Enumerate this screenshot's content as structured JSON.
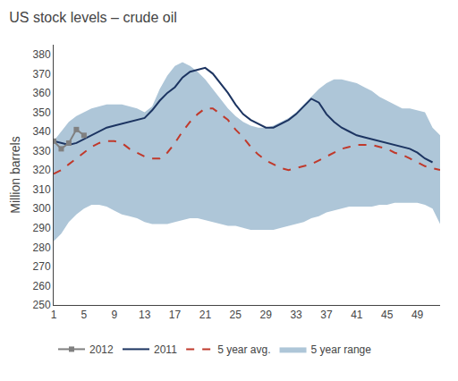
{
  "chart_data": {
    "type": "line",
    "title": "US stock levels – crude oil",
    "ylabel": "Million barrels",
    "x": [
      1,
      2,
      3,
      4,
      5,
      6,
      7,
      8,
      9,
      10,
      11,
      12,
      13,
      14,
      15,
      16,
      17,
      18,
      19,
      20,
      21,
      22,
      23,
      24,
      25,
      26,
      27,
      28,
      29,
      30,
      31,
      32,
      33,
      34,
      35,
      36,
      37,
      38,
      39,
      40,
      41,
      42,
      43,
      44,
      45,
      46,
      47,
      48,
      49,
      50,
      51,
      52
    ],
    "xlim": [
      1,
      52
    ],
    "xticks": [
      1,
      5,
      9,
      13,
      17,
      21,
      25,
      29,
      33,
      37,
      41,
      45,
      49
    ],
    "ylim": [
      250,
      385
    ],
    "yticks": [
      250,
      260,
      270,
      280,
      290,
      300,
      310,
      320,
      330,
      340,
      350,
      360,
      370,
      380
    ],
    "grid": false,
    "legend": "bottom",
    "series": [
      {
        "name": "5 year range",
        "type": "range",
        "color": "#aec6d8",
        "low": [
          283,
          287,
          293,
          297,
          300,
          302,
          302,
          301,
          299,
          297,
          296,
          295,
          293,
          292,
          292,
          292,
          293,
          294,
          295,
          295,
          294,
          293,
          292,
          291,
          291,
          290,
          289,
          289,
          289,
          289,
          290,
          291,
          292,
          293,
          295,
          296,
          298,
          299,
          300,
          301,
          301,
          301,
          301,
          302,
          302,
          303,
          303,
          303,
          303,
          302,
          300,
          292
        ],
        "high": [
          335,
          340,
          345,
          348,
          350,
          352,
          353,
          354,
          354,
          354,
          353,
          352,
          350,
          353,
          362,
          369,
          374,
          376,
          374,
          371,
          367,
          362,
          357,
          352,
          348,
          345,
          343,
          342,
          342,
          343,
          345,
          347,
          350,
          354,
          358,
          362,
          365,
          367,
          367,
          366,
          365,
          363,
          361,
          358,
          356,
          354,
          352,
          352,
          351,
          350,
          342,
          338
        ]
      },
      {
        "name": "5 year avg.",
        "color": "#c0392b",
        "line_style": "dashed",
        "values": [
          318,
          320,
          323,
          326,
          329,
          332,
          334,
          335,
          335,
          334,
          331,
          329,
          327,
          326,
          326,
          329,
          334,
          340,
          345,
          349,
          352,
          352,
          349,
          346,
          341,
          337,
          332,
          328,
          325,
          323,
          321,
          320,
          321,
          322,
          323,
          325,
          327,
          329,
          331,
          332,
          333,
          333,
          333,
          332,
          331,
          329,
          328,
          326,
          324,
          322,
          321,
          320
        ]
      },
      {
        "name": "2011",
        "color": "#1c3461",
        "line_style": "solid",
        "values": [
          335,
          334,
          333,
          334,
          336,
          338,
          340,
          342,
          343,
          344,
          345,
          346,
          347,
          351,
          356,
          360,
          363,
          368,
          371,
          372,
          373,
          370,
          365,
          360,
          354,
          349,
          346,
          344,
          342,
          342,
          344,
          346,
          349,
          353,
          357,
          355,
          349,
          345,
          342,
          340,
          338,
          337,
          336,
          335,
          334,
          333,
          332,
          331,
          329,
          326,
          324,
          null
        ]
      },
      {
        "name": "2012",
        "color": "#808080",
        "line_style": "solid",
        "marker": "square",
        "values": [
          335,
          331,
          334,
          341,
          338,
          null,
          null,
          null,
          null,
          null,
          null,
          null,
          null,
          null,
          null,
          null,
          null,
          null,
          null,
          null,
          null,
          null,
          null,
          null,
          null,
          null,
          null,
          null,
          null,
          null,
          null,
          null,
          null,
          null,
          null,
          null,
          null,
          null,
          null,
          null,
          null,
          null,
          null,
          null,
          null,
          null,
          null,
          null,
          null,
          null,
          null,
          null
        ]
      }
    ]
  }
}
